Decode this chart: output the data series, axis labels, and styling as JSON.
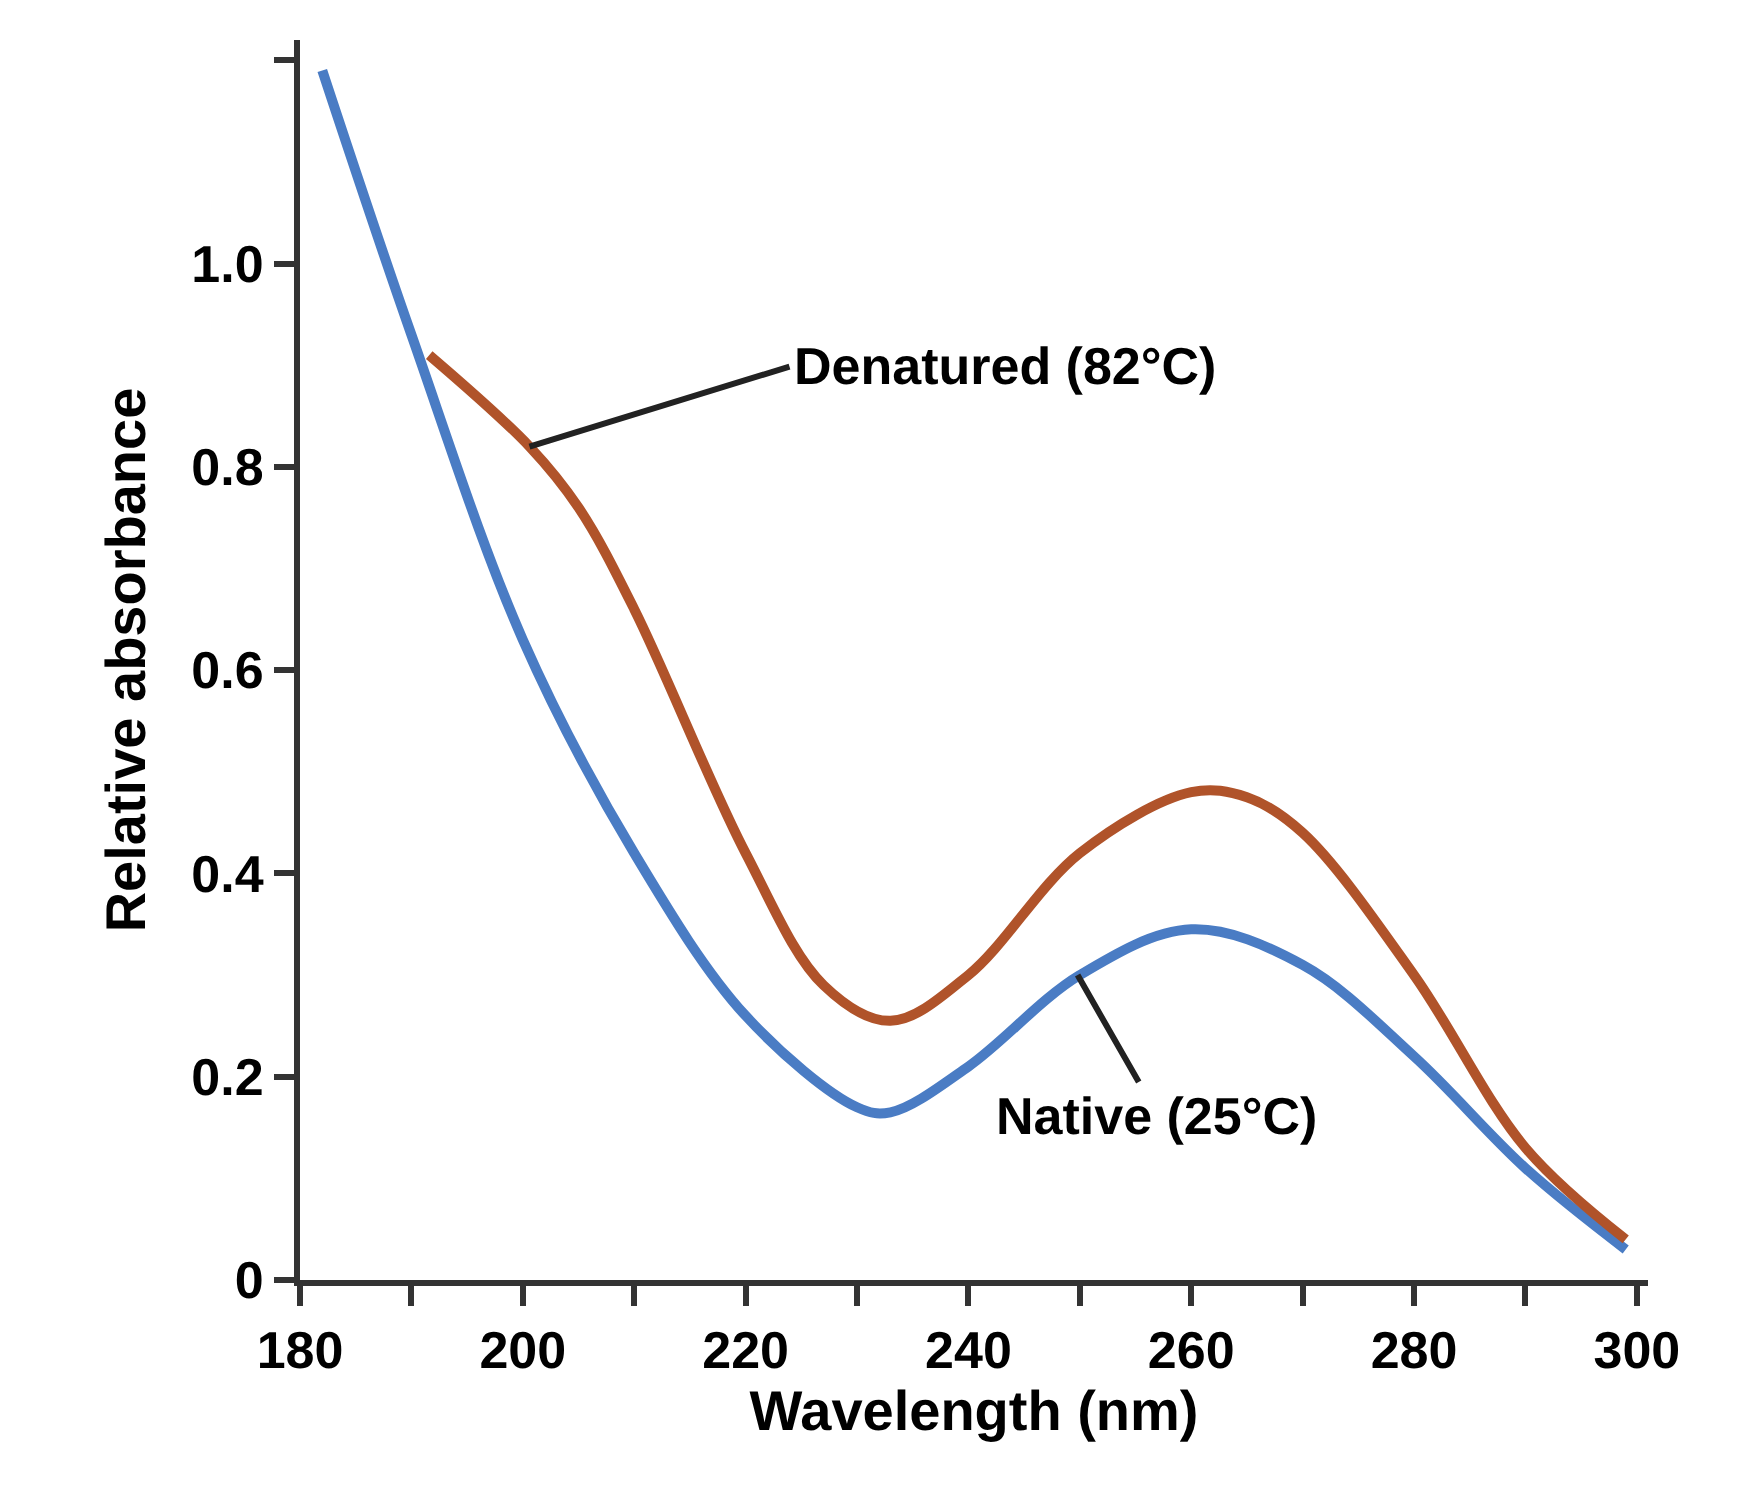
{
  "chart_data": {
    "type": "line",
    "xlabel": "Wavelength (nm)",
    "ylabel": "Relative absorbance",
    "xlim": [
      180,
      301
    ],
    "xticks": [
      180,
      {
        "value": 190,
        "label": null
      },
      200,
      {
        "value": 210,
        "label": null
      },
      220,
      {
        "value": 230,
        "label": null
      },
      240,
      {
        "value": 250,
        "label": null
      },
      260,
      {
        "value": 270,
        "label": null
      },
      280,
      {
        "value": 290,
        "label": null
      },
      300
    ],
    "ylim": [
      0,
      1.22
    ],
    "yticks": [
      0,
      0.2,
      0.4,
      0.6,
      0.8,
      {
        "value": 1,
        "label": "1.0"
      },
      {
        "value": 1.2,
        "label": null
      }
    ],
    "grid": false,
    "legend": false,
    "marker": "none",
    "line_style": "solid",
    "series": [
      {
        "color": "#4a7cc4",
        "x": [
          182,
          190,
          200,
          210,
          220,
          230,
          233,
          240,
          250,
          260,
          270,
          280,
          290,
          299
        ],
        "values": [
          1.19,
          0.93,
          0.63,
          0.42,
          0.26,
          0.17,
          0.165,
          0.21,
          0.3,
          0.345,
          0.31,
          0.22,
          0.11,
          0.03
        ]
      },
      {
        "color": "#b0532a",
        "x": [
          191.6,
          200.6,
          205,
          210,
          220,
          227,
          233,
          240,
          250,
          260,
          265,
          270,
          280,
          290,
          299
        ],
        "values": [
          0.91,
          0.82,
          0.76,
          0.66,
          0.42,
          0.29,
          0.255,
          0.3,
          0.42,
          0.48,
          0.475,
          0.44,
          0.3,
          0.13,
          0.04
        ]
      }
    ],
    "annotations": [
      {
        "text": "Denatured (82°C)",
        "x": 200.6,
        "y": 0.82
      },
      {
        "text": "Native (25°C)",
        "x": 249.8,
        "y": 0.3
      }
    ]
  }
}
